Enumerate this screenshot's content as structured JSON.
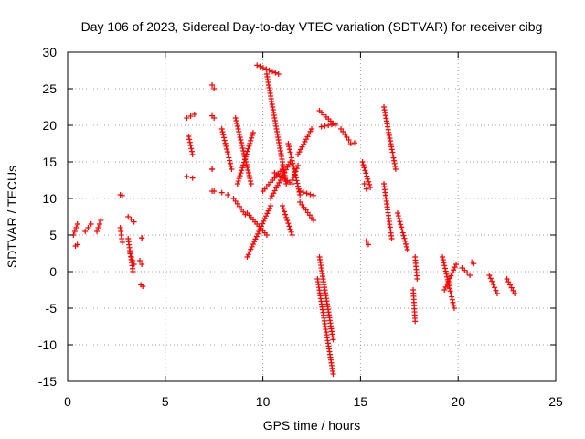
{
  "chart_data": {
    "type": "scatter",
    "title": "Day 106 of 2023, Sidereal Day-to-day VTEC variation (SDTVAR) for receiver cibg",
    "xlabel": "GPS time / hours",
    "ylabel": "SDTVAR / TECUs",
    "xlim": [
      0,
      25
    ],
    "ylim": [
      -15,
      30
    ],
    "xticks": [
      0,
      5,
      10,
      15,
      20,
      25
    ],
    "yticks": [
      -15,
      -10,
      -5,
      0,
      5,
      10,
      15,
      20,
      25,
      30
    ],
    "xtick_labels": [
      "0",
      "5",
      "10",
      "15",
      "20",
      "25"
    ],
    "ytick_labels": [
      "-15",
      "-10",
      "-5",
      "0",
      "5",
      "10",
      "15",
      "20",
      "25",
      "30"
    ],
    "grid": true,
    "marker": "+",
    "color": "#ff0000",
    "tracks": [
      {
        "x": [
          0.3,
          0.5
        ],
        "y": [
          5,
          6.5
        ]
      },
      {
        "x": [
          0.4,
          0.5
        ],
        "y": [
          3.5,
          3.7
        ]
      },
      {
        "x": [
          0.9,
          1.2
        ],
        "y": [
          5.5,
          6.5
        ]
      },
      {
        "x": [
          1.5,
          1.7
        ],
        "y": [
          5.5,
          7
        ]
      },
      {
        "x": [
          2.7,
          2.8
        ],
        "y": [
          10.5,
          10.4
        ]
      },
      {
        "x": [
          2.7,
          2.8
        ],
        "y": [
          6,
          4
        ]
      },
      {
        "x": [
          3.1,
          3.4
        ],
        "y": [
          7.5,
          6.8
        ]
      },
      {
        "x": [
          3.1,
          3.35
        ],
        "y": [
          4.5,
          0
        ]
      },
      {
        "x": [
          3.2,
          3.4
        ],
        "y": [
          2.5,
          1
        ]
      },
      {
        "x": [
          3.7,
          3.8
        ],
        "y": [
          1.5,
          1
        ]
      },
      {
        "x": [
          3.75,
          3.85
        ],
        "y": [
          -1.8,
          -2
        ]
      },
      {
        "x": [
          3.8,
          3.8
        ],
        "y": [
          4.6,
          4.6
        ]
      },
      {
        "x": [
          6.1,
          6.5
        ],
        "y": [
          21,
          21.5
        ]
      },
      {
        "x": [
          6.2,
          6.4
        ],
        "y": [
          18.5,
          16
        ]
      },
      {
        "x": [
          6.1,
          6.4
        ],
        "y": [
          13,
          12.8
        ]
      },
      {
        "x": [
          7.4,
          7.5
        ],
        "y": [
          25.5,
          25
        ]
      },
      {
        "x": [
          7.4,
          7.5
        ],
        "y": [
          21.3,
          21
        ]
      },
      {
        "x": [
          7.4,
          7.4
        ],
        "y": [
          14,
          14
        ]
      },
      {
        "x": [
          7.4,
          7.5
        ],
        "y": [
          11,
          11
        ]
      },
      {
        "x": [
          7.9,
          8.2
        ],
        "y": [
          10.8,
          10.5
        ]
      },
      {
        "x": [
          7.9,
          8.4
        ],
        "y": [
          19.5,
          14
        ]
      },
      {
        "x": [
          8.6,
          9.4
        ],
        "y": [
          21,
          12
        ]
      },
      {
        "x": [
          8.7,
          9.5
        ],
        "y": [
          12,
          19
        ]
      },
      {
        "x": [
          8.5,
          9.1
        ],
        "y": [
          10,
          7.8
        ]
      },
      {
        "x": [
          9.2,
          10.4
        ],
        "y": [
          2,
          9
        ]
      },
      {
        "x": [
          9.2,
          10.2
        ],
        "y": [
          8,
          5
        ]
      },
      {
        "x": [
          9.7,
          10.8
        ],
        "y": [
          28.2,
          27
        ]
      },
      {
        "x": [
          10.0,
          11.0
        ],
        "y": [
          11,
          14
        ]
      },
      {
        "x": [
          10.2,
          11.2
        ],
        "y": [
          27,
          12
        ]
      },
      {
        "x": [
          10.4,
          11.4
        ],
        "y": [
          10,
          15
        ]
      },
      {
        "x": [
          10.6,
          11.5
        ],
        "y": [
          13.5,
          12
        ]
      },
      {
        "x": [
          11.0,
          11.5
        ],
        "y": [
          9,
          5
        ]
      },
      {
        "x": [
          11.3,
          11.9
        ],
        "y": [
          17.5,
          10.5
        ]
      },
      {
        "x": [
          11.5,
          11.8
        ],
        "y": [
          12.5,
          14.5
        ]
      },
      {
        "x": [
          11.8,
          12.5
        ],
        "y": [
          16,
          19.5
        ]
      },
      {
        "x": [
          11.9,
          12.6
        ],
        "y": [
          11,
          10.4
        ]
      },
      {
        "x": [
          11.9,
          12.6
        ],
        "y": [
          9.5,
          7
        ]
      },
      {
        "x": [
          12.8,
          13.6
        ],
        "y": [
          -1,
          -14
        ]
      },
      {
        "x": [
          12.9,
          13.6
        ],
        "y": [
          2,
          -9.3
        ]
      },
      {
        "x": [
          12.9,
          13.7
        ],
        "y": [
          22,
          20
        ]
      },
      {
        "x": [
          13.0,
          13.7
        ],
        "y": [
          19.8,
          20.2
        ]
      },
      {
        "x": [
          14.0,
          14.4
        ],
        "y": [
          19.5,
          18
        ]
      },
      {
        "x": [
          14.5,
          14.7
        ],
        "y": [
          17.5,
          17.6
        ]
      },
      {
        "x": [
          15.1,
          15.5
        ],
        "y": [
          15,
          11.5
        ]
      },
      {
        "x": [
          15.2,
          15.3
        ],
        "y": [
          12,
          11.3
        ]
      },
      {
        "x": [
          15.3,
          15.4
        ],
        "y": [
          4.2,
          3.7
        ]
      },
      {
        "x": [
          16.2,
          16.8
        ],
        "y": [
          22.5,
          14
        ]
      },
      {
        "x": [
          16.2,
          16.6
        ],
        "y": [
          12,
          4.5
        ]
      },
      {
        "x": [
          16.9,
          17.4
        ],
        "y": [
          8,
          3
        ]
      },
      {
        "x": [
          17.7,
          17.8
        ],
        "y": [
          -2.5,
          -6.8
        ]
      },
      {
        "x": [
          17.8,
          17.9
        ],
        "y": [
          2,
          -1
        ]
      },
      {
        "x": [
          19.2,
          19.8
        ],
        "y": [
          2,
          -5
        ]
      },
      {
        "x": [
          19.3,
          19.9
        ],
        "y": [
          -2.5,
          1
        ]
      },
      {
        "x": [
          20.2,
          20.6
        ],
        "y": [
          0.5,
          -0.5
        ]
      },
      {
        "x": [
          20.7,
          20.8
        ],
        "y": [
          1.3,
          1.1
        ]
      },
      {
        "x": [
          21.6,
          22.0
        ],
        "y": [
          -0.5,
          -3
        ]
      },
      {
        "x": [
          22.5,
          22.9
        ],
        "y": [
          -1,
          -3
        ]
      }
    ]
  }
}
